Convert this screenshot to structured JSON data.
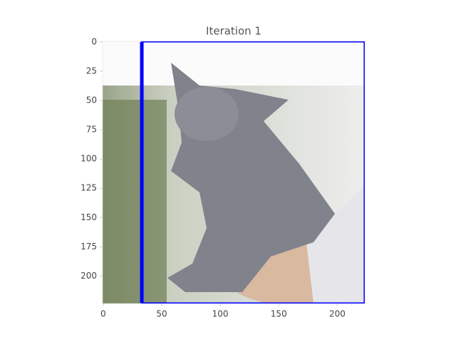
{
  "chart_data": {
    "type": "image",
    "title": "Iteration 1",
    "xlim": [
      -0.5,
      223.5
    ],
    "ylim": [
      223.5,
      -0.5
    ],
    "xticks": [
      0,
      50,
      100,
      150,
      200
    ],
    "yticks": [
      0,
      25,
      50,
      75,
      100,
      125,
      150,
      175,
      200
    ],
    "box": {
      "x0": 33,
      "y0": 0,
      "x1": 223,
      "y1": 223,
      "color": "#0000ff"
    }
  }
}
